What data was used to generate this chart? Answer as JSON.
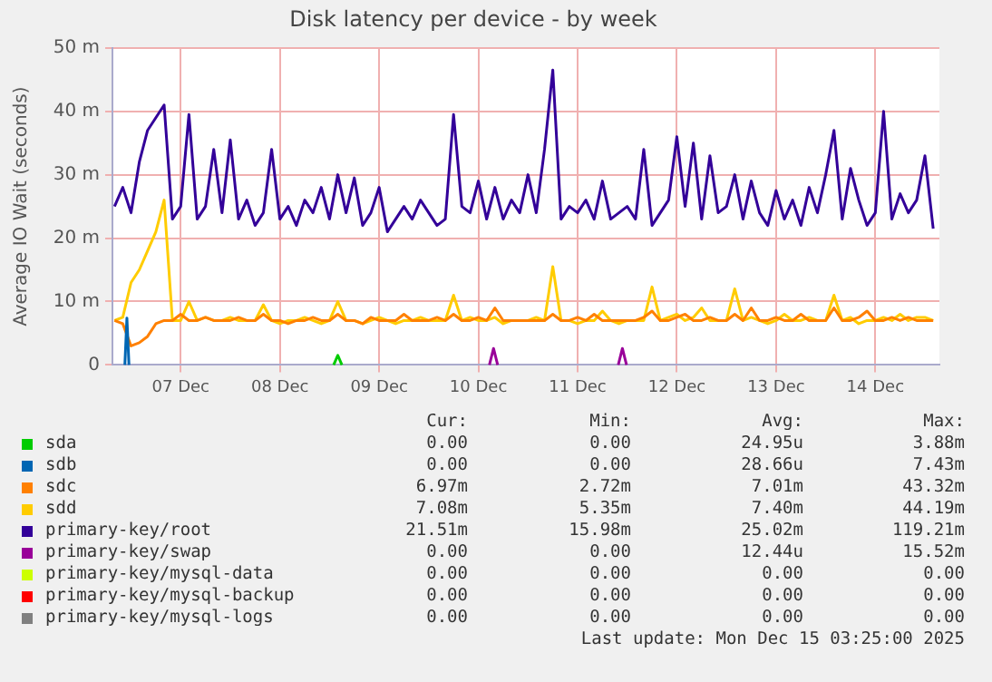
{
  "chart_data": {
    "type": "line",
    "title": "Disk latency per device - by week",
    "ylabel": "Average IO Wait (seconds)",
    "legend": "bottom",
    "grid": true,
    "xlim": [
      "2025-12-06T19:30",
      "2025-12-15T03:30"
    ],
    "xticks": [
      {
        "value": "2025-12-07T12:00",
        "label": "07 Dec"
      },
      {
        "value": "2025-12-08T12:00",
        "label": "08 Dec"
      },
      {
        "value": "2025-12-09T12:00",
        "label": "09 Dec"
      },
      {
        "value": "2025-12-10T12:00",
        "label": "10 Dec"
      },
      {
        "value": "2025-12-11T12:00",
        "label": "11 Dec"
      },
      {
        "value": "2025-12-12T12:00",
        "label": "12 Dec"
      },
      {
        "value": "2025-12-13T12:00",
        "label": "13 Dec"
      },
      {
        "value": "2025-12-14T12:00",
        "label": "14 Dec"
      }
    ],
    "ylim": [
      0,
      50
    ],
    "yticks": [
      0,
      {
        "value": 10,
        "label": "10 m"
      },
      {
        "value": 20,
        "label": "20 m"
      },
      {
        "value": 30,
        "label": "30 m"
      },
      {
        "value": 40,
        "label": "40 m"
      },
      {
        "value": 50,
        "label": "50 m"
      }
    ],
    "x": [
      "2025-12-06T20:00",
      "2025-12-06T22:00",
      "2025-12-07T00:00",
      "2025-12-07T02:00",
      "2025-12-07T04:00",
      "2025-12-07T06:00",
      "2025-12-07T08:00",
      "2025-12-07T10:00",
      "2025-12-07T12:00",
      "2025-12-07T14:00",
      "2025-12-07T16:00",
      "2025-12-07T18:00",
      "2025-12-07T20:00",
      "2025-12-07T22:00",
      "2025-12-08T00:00",
      "2025-12-08T02:00",
      "2025-12-08T04:00",
      "2025-12-08T06:00",
      "2025-12-08T08:00",
      "2025-12-08T10:00",
      "2025-12-08T12:00",
      "2025-12-08T14:00",
      "2025-12-08T16:00",
      "2025-12-08T18:00",
      "2025-12-08T20:00",
      "2025-12-08T22:00",
      "2025-12-09T00:00",
      "2025-12-09T02:00",
      "2025-12-09T04:00",
      "2025-12-09T06:00",
      "2025-12-09T08:00",
      "2025-12-09T10:00",
      "2025-12-09T12:00",
      "2025-12-09T14:00",
      "2025-12-09T16:00",
      "2025-12-09T18:00",
      "2025-12-09T20:00",
      "2025-12-09T22:00",
      "2025-12-10T00:00",
      "2025-12-10T02:00",
      "2025-12-10T04:00",
      "2025-12-10T06:00",
      "2025-12-10T08:00",
      "2025-12-10T10:00",
      "2025-12-10T12:00",
      "2025-12-10T14:00",
      "2025-12-10T16:00",
      "2025-12-10T18:00",
      "2025-12-10T20:00",
      "2025-12-10T22:00",
      "2025-12-11T00:00",
      "2025-12-11T02:00",
      "2025-12-11T04:00",
      "2025-12-11T06:00",
      "2025-12-11T08:00",
      "2025-12-11T10:00",
      "2025-12-11T12:00",
      "2025-12-11T14:00",
      "2025-12-11T16:00",
      "2025-12-11T18:00",
      "2025-12-11T20:00",
      "2025-12-11T22:00",
      "2025-12-12T00:00",
      "2025-12-12T02:00",
      "2025-12-12T04:00",
      "2025-12-12T06:00",
      "2025-12-12T08:00",
      "2025-12-12T10:00",
      "2025-12-12T12:00",
      "2025-12-12T14:00",
      "2025-12-12T16:00",
      "2025-12-12T18:00",
      "2025-12-12T20:00",
      "2025-12-12T22:00",
      "2025-12-13T00:00",
      "2025-12-13T02:00",
      "2025-12-13T04:00",
      "2025-12-13T06:00",
      "2025-12-13T08:00",
      "2025-12-13T10:00",
      "2025-12-13T12:00",
      "2025-12-13T14:00",
      "2025-12-13T16:00",
      "2025-12-13T18:00",
      "2025-12-13T20:00",
      "2025-12-13T22:00",
      "2025-12-14T00:00",
      "2025-12-14T02:00",
      "2025-12-14T04:00",
      "2025-12-14T06:00",
      "2025-12-14T08:00",
      "2025-12-14T10:00",
      "2025-12-14T12:00",
      "2025-12-14T14:00",
      "2025-12-14T16:00",
      "2025-12-14T18:00",
      "2025-12-14T20:00",
      "2025-12-14T22:00",
      "2025-12-15T00:00",
      "2025-12-15T02:00"
    ],
    "series": [
      {
        "name": "sda",
        "color": "#00cc00",
        "x": [
          "2025-12-09T01:00",
          "2025-12-09T02:00",
          "2025-12-09T03:00"
        ],
        "values": [
          0,
          1.5,
          0
        ]
      },
      {
        "name": "sdb",
        "color": "#0066b3",
        "x": [
          "2025-12-06T22:30",
          "2025-12-06T23:00",
          "2025-12-06T23:30"
        ],
        "values": [
          0,
          7.4,
          0
        ]
      },
      {
        "name": "sdc",
        "color": "#ff8000",
        "values": [
          7,
          6.5,
          3,
          3.5,
          4.5,
          6.5,
          7,
          7,
          8,
          7,
          7,
          7.5,
          7,
          7,
          7,
          7.5,
          7,
          7,
          8,
          7,
          7,
          6.5,
          7,
          7,
          7.5,
          7,
          7,
          8,
          7,
          7,
          6.5,
          7.5,
          7,
          7,
          7,
          8,
          7,
          7,
          7,
          7.5,
          7,
          8,
          7,
          7,
          7.5,
          7,
          9,
          7,
          7,
          7,
          7,
          7,
          7,
          8,
          7,
          7,
          7.5,
          7,
          8,
          7,
          7,
          7,
          7,
          7,
          7.5,
          8.5,
          7,
          7,
          7.5,
          8,
          7,
          7,
          7.5,
          7,
          7,
          8,
          7,
          9,
          7,
          7,
          7.5,
          7,
          7,
          8,
          7,
          7,
          7,
          9,
          7,
          7,
          7.5,
          8.5,
          7,
          7,
          7.5,
          7,
          7.5,
          7,
          7,
          7
        ]
      },
      {
        "name": "sdd",
        "color": "#ffcc00",
        "values": [
          7,
          7.5,
          13,
          15,
          18,
          21,
          26,
          7,
          7,
          10,
          7,
          7.5,
          7,
          7,
          7.5,
          7,
          7,
          7,
          9.5,
          7,
          6.5,
          7,
          7,
          7.5,
          7,
          6.5,
          7,
          10,
          7,
          7,
          6.5,
          7,
          7.5,
          7,
          6.5,
          7,
          7,
          7.5,
          7,
          7,
          7,
          11,
          7,
          7.5,
          7,
          7,
          7.5,
          6.5,
          7,
          7,
          7,
          7.5,
          7,
          15.5,
          7,
          7,
          6.5,
          7,
          7,
          8.5,
          7,
          6.5,
          7,
          7,
          7,
          12.3,
          7,
          7.5,
          8,
          7,
          7.5,
          9,
          7,
          7,
          7,
          12,
          7,
          7.5,
          7,
          6.5,
          7,
          8,
          7,
          7,
          7.5,
          7,
          7,
          11,
          7,
          7.5,
          6.5,
          7,
          7,
          7.5,
          7,
          8,
          7,
          7.5,
          7.5,
          7
        ]
      },
      {
        "name": "primary-key/root",
        "color": "#330099",
        "values": [
          25,
          28,
          24,
          32,
          37,
          39,
          41,
          23,
          25,
          39.5,
          23,
          25,
          34,
          24,
          35.5,
          23,
          26,
          22,
          24,
          34,
          23,
          25,
          22,
          26,
          24,
          28,
          23,
          30,
          24,
          29.5,
          22,
          24,
          28,
          21,
          23,
          25,
          23,
          26,
          24,
          22,
          23,
          39.5,
          25,
          24,
          29,
          23,
          28,
          23,
          26,
          24,
          30,
          24,
          34,
          46.5,
          23,
          25,
          24,
          26,
          23,
          29,
          23,
          24,
          25,
          23,
          34,
          22,
          24,
          26,
          36,
          25,
          35,
          23,
          33,
          24,
          25,
          30,
          23,
          29,
          24,
          22,
          27.5,
          23,
          26,
          22,
          28,
          24,
          30,
          37,
          23,
          31,
          26,
          22,
          24,
          40,
          23,
          27,
          24,
          26,
          33,
          21.5
        ]
      },
      {
        "name": "primary-key/swap",
        "color": "#990099",
        "x": [
          "2025-12-10T14:40",
          "2025-12-10T15:40",
          "2025-12-10T16:40",
          "2025-12-11T12:00",
          "2025-12-11T21:50",
          "2025-12-11T22:50",
          "2025-12-11T23:50"
        ],
        "values": [
          0,
          2.6,
          0,
          null,
          0,
          2.6,
          0
        ]
      },
      {
        "name": "primary-key/mysql-data",
        "color": "#ccff00",
        "values": [
          null,
          null,
          null,
          null,
          null,
          null,
          null,
          null,
          null,
          null,
          null,
          null,
          null,
          null,
          null,
          null,
          null,
          null,
          null,
          null,
          null,
          null,
          null,
          null,
          null,
          null,
          null,
          null,
          null,
          null,
          null,
          null,
          null,
          null,
          null,
          null,
          null,
          null,
          null,
          null,
          null,
          null,
          null,
          null,
          null,
          null,
          null,
          null,
          null,
          null,
          null,
          null,
          null,
          null,
          null,
          null,
          null,
          null,
          null,
          null,
          null,
          null,
          null,
          null,
          null,
          null,
          null,
          null,
          null,
          null,
          null,
          null,
          null,
          null,
          null,
          null,
          null,
          null,
          null,
          null,
          null,
          null,
          null,
          null,
          null,
          null,
          null,
          null,
          null,
          null,
          null,
          null,
          null,
          null,
          null,
          null,
          null,
          null,
          null,
          null
        ]
      },
      {
        "name": "primary-key/mysql-backup",
        "color": "#ff0000",
        "values": [
          null,
          null,
          null,
          null,
          null,
          null,
          null,
          null,
          null,
          null,
          null,
          null,
          null,
          null,
          null,
          null,
          null,
          null,
          null,
          null,
          null,
          null,
          null,
          null,
          null,
          null,
          null,
          null,
          null,
          null,
          null,
          null,
          null,
          null,
          null,
          null,
          null,
          null,
          null,
          null,
          null,
          null,
          null,
          null,
          null,
          null,
          null,
          null,
          null,
          null,
          null,
          null,
          null,
          null,
          null,
          null,
          null,
          null,
          null,
          null,
          null,
          null,
          null,
          null,
          null,
          null,
          null,
          null,
          null,
          null,
          null,
          null,
          null,
          null,
          null,
          null,
          null,
          null,
          null,
          null,
          null,
          null,
          null,
          null,
          null,
          null,
          null,
          null,
          null,
          null,
          null,
          null,
          null,
          null,
          null,
          null,
          null,
          null,
          null,
          null
        ]
      },
      {
        "name": "primary-key/mysql-logs",
        "color": "#808080",
        "values": [
          null,
          null,
          null,
          null,
          null,
          null,
          null,
          null,
          null,
          null,
          null,
          null,
          null,
          null,
          null,
          null,
          null,
          null,
          null,
          null,
          null,
          null,
          null,
          null,
          null,
          null,
          null,
          null,
          null,
          null,
          null,
          null,
          null,
          null,
          null,
          null,
          null,
          null,
          null,
          null,
          null,
          null,
          null,
          null,
          null,
          null,
          null,
          null,
          null,
          null,
          null,
          null,
          null,
          null,
          null,
          null,
          null,
          null,
          null,
          null,
          null,
          null,
          null,
          null,
          null,
          null,
          null,
          null,
          null,
          null,
          null,
          null,
          null,
          null,
          null,
          null,
          null,
          null,
          null,
          null,
          null,
          null,
          null,
          null,
          null,
          null,
          null,
          null,
          null,
          null,
          null,
          null,
          null,
          null,
          null,
          null,
          null,
          null,
          null,
          null
        ]
      }
    ],
    "annotations": [
      "Cur:",
      "Min:",
      "Avg:",
      "Max:",
      "0.00",
      "0.00",
      "24.95u",
      "3.88m",
      "0.00",
      "0.00",
      "28.66u",
      "7.43m",
      "6.97m",
      "2.72m",
      "7.01m",
      "43.32m",
      "7.08m",
      "5.35m",
      "7.40m",
      "44.19m",
      "21.51m",
      "15.98m",
      "25.02m",
      "119.21m",
      "0.00",
      "0.00",
      "12.44u",
      "15.52m",
      "0.00",
      "0.00",
      "0.00",
      "0.00",
      "0.00",
      "0.00",
      "0.00",
      "0.00",
      "0.00",
      "0.00",
      "0.00",
      "0.00",
      "Last update: Mon Dec 15 03:25:00 2025"
    ]
  }
}
